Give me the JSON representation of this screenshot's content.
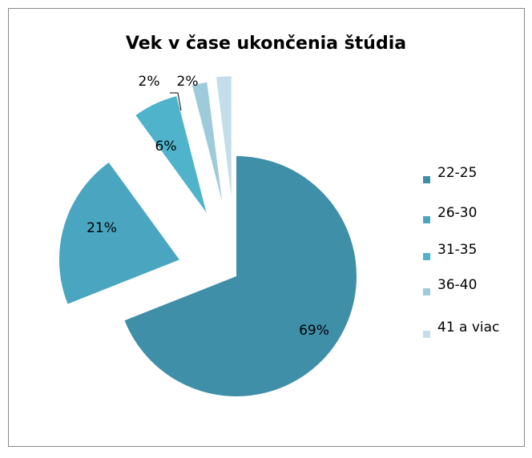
{
  "chart_data": {
    "type": "pie",
    "title": "Vek v čase ukončenia štúdia",
    "categories": [
      "22-25",
      "26-30",
      "31-35",
      "36-40",
      "41 a viac"
    ],
    "values": [
      69,
      21,
      6,
      2,
      2
    ],
    "value_labels": [
      "69%",
      "21%",
      "6%",
      "2%",
      "2%"
    ],
    "colors": [
      "#3f8fa8",
      "#4aa6c0",
      "#4fb3cc",
      "#9fcadb",
      "#c4dee9"
    ],
    "legend": "right"
  }
}
